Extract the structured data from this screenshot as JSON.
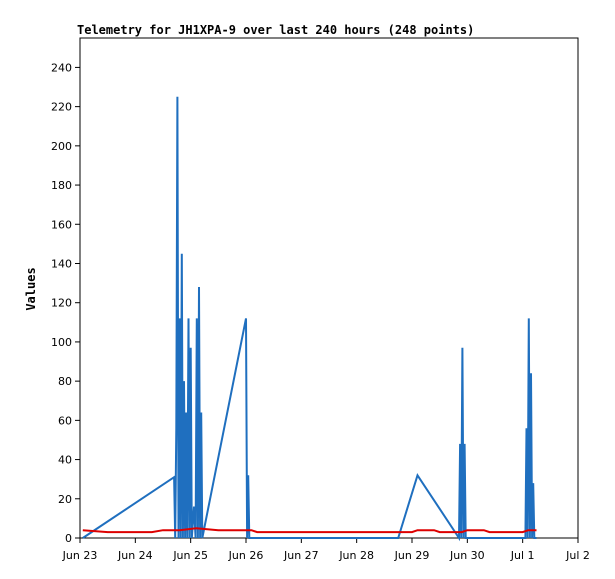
{
  "chart_data": {
    "type": "line",
    "title": "Telemetry for JH1XPA-9 over last 240 hours (248 points)",
    "xlabel": "",
    "ylabel": "Values",
    "x_ticks": [
      "Jun 23",
      "Jun 24",
      "Jun 25",
      "Jun 26",
      "Jun 27",
      "Jun 28",
      "Jun 29",
      "Jun 30",
      "Jul 1",
      "Jul 2"
    ],
    "y_ticks": [
      0,
      20,
      40,
      60,
      80,
      100,
      120,
      140,
      160,
      180,
      200,
      220,
      240
    ],
    "xlim": [
      0,
      9
    ],
    "ylim": [
      0,
      255
    ],
    "grid": false,
    "series": [
      {
        "color": "#1f6fbf",
        "points": [
          [
            0.05,
            0
          ],
          [
            1.7,
            31
          ],
          [
            1.72,
            0
          ],
          [
            1.74,
            56
          ],
          [
            1.76,
            225
          ],
          [
            1.78,
            0
          ],
          [
            1.8,
            112
          ],
          [
            1.82,
            0
          ],
          [
            1.84,
            145
          ],
          [
            1.86,
            0
          ],
          [
            1.88,
            80
          ],
          [
            1.9,
            0
          ],
          [
            1.92,
            64
          ],
          [
            1.94,
            0
          ],
          [
            1.96,
            112
          ],
          [
            1.98,
            0
          ],
          [
            2.0,
            97
          ],
          [
            2.02,
            0
          ],
          [
            2.06,
            16
          ],
          [
            2.09,
            0
          ],
          [
            2.11,
            112
          ],
          [
            2.13,
            0
          ],
          [
            2.15,
            128
          ],
          [
            2.17,
            0
          ],
          [
            2.19,
            64
          ],
          [
            2.21,
            0
          ],
          [
            3.0,
            112
          ],
          [
            3.02,
            0
          ],
          [
            3.04,
            32
          ],
          [
            3.06,
            0
          ],
          [
            5.75,
            0
          ],
          [
            6.1,
            32
          ],
          [
            6.85,
            0
          ],
          [
            6.87,
            48
          ],
          [
            6.89,
            0
          ],
          [
            6.91,
            97
          ],
          [
            6.93,
            0
          ],
          [
            6.95,
            48
          ],
          [
            6.97,
            0
          ],
          [
            8.05,
            0
          ],
          [
            8.07,
            56
          ],
          [
            8.09,
            0
          ],
          [
            8.11,
            112
          ],
          [
            8.13,
            0
          ],
          [
            8.15,
            84
          ],
          [
            8.17,
            0
          ],
          [
            8.19,
            28
          ],
          [
            8.21,
            0
          ],
          [
            8.25,
            0
          ]
        ]
      },
      {
        "color": "#dd0000",
        "points": [
          [
            0.05,
            4
          ],
          [
            0.5,
            3
          ],
          [
            1.3,
            3
          ],
          [
            1.5,
            4
          ],
          [
            1.8,
            4
          ],
          [
            2.1,
            5
          ],
          [
            2.5,
            4
          ],
          [
            3.1,
            4
          ],
          [
            3.2,
            3
          ],
          [
            4.5,
            3
          ],
          [
            5.8,
            3
          ],
          [
            6.0,
            3
          ],
          [
            6.1,
            4
          ],
          [
            6.4,
            4
          ],
          [
            6.5,
            3
          ],
          [
            6.9,
            3
          ],
          [
            7.0,
            4
          ],
          [
            7.3,
            4
          ],
          [
            7.4,
            3
          ],
          [
            7.9,
            3
          ],
          [
            8.0,
            3
          ],
          [
            8.1,
            4
          ],
          [
            8.25,
            4
          ]
        ]
      }
    ]
  }
}
